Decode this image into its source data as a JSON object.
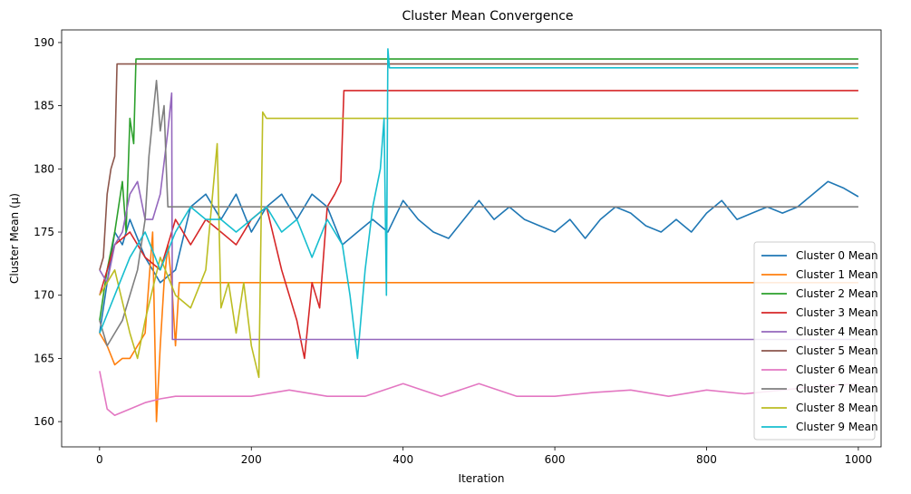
{
  "chart_data": {
    "type": "line",
    "title": "Cluster Mean Convergence",
    "xlabel": "Iteration",
    "ylabel": "Cluster Mean (μ)",
    "xlim": [
      -50,
      1030
    ],
    "ylim": [
      158,
      191
    ],
    "xticks": [
      0,
      200,
      400,
      600,
      800,
      1000
    ],
    "yticks": [
      160,
      165,
      170,
      175,
      180,
      185,
      190
    ],
    "grid": false,
    "legend_position": "lower-right",
    "series": [
      {
        "name": "Cluster 0 Mean",
        "color": "#1f77b4",
        "points": [
          [
            0,
            167
          ],
          [
            10,
            171
          ],
          [
            20,
            175
          ],
          [
            30,
            174
          ],
          [
            40,
            176
          ],
          [
            60,
            173
          ],
          [
            80,
            171
          ],
          [
            100,
            172
          ],
          [
            120,
            177
          ],
          [
            140,
            178
          ],
          [
            160,
            176
          ],
          [
            180,
            178
          ],
          [
            200,
            175
          ],
          [
            220,
            177
          ],
          [
            240,
            178
          ],
          [
            260,
            176
          ],
          [
            280,
            178
          ],
          [
            300,
            177
          ],
          [
            320,
            174
          ],
          [
            340,
            175
          ],
          [
            360,
            176
          ],
          [
            380,
            175
          ],
          [
            400,
            177.5
          ],
          [
            420,
            176
          ],
          [
            440,
            175
          ],
          [
            460,
            174.5
          ],
          [
            480,
            176
          ],
          [
            500,
            177.5
          ],
          [
            520,
            176
          ],
          [
            540,
            177
          ],
          [
            560,
            176
          ],
          [
            580,
            175.5
          ],
          [
            600,
            175
          ],
          [
            620,
            176
          ],
          [
            640,
            174.5
          ],
          [
            660,
            176
          ],
          [
            680,
            177
          ],
          [
            700,
            176.5
          ],
          [
            720,
            175.5
          ],
          [
            740,
            175
          ],
          [
            760,
            176
          ],
          [
            780,
            175
          ],
          [
            800,
            176.5
          ],
          [
            820,
            177.5
          ],
          [
            840,
            176
          ],
          [
            860,
            176.5
          ],
          [
            880,
            177
          ],
          [
            900,
            176.5
          ],
          [
            920,
            177
          ],
          [
            940,
            178
          ],
          [
            960,
            179
          ],
          [
            980,
            178.5
          ],
          [
            1000,
            177.8
          ]
        ]
      },
      {
        "name": "Cluster 1 Mean",
        "color": "#ff7f0e",
        "points": [
          [
            0,
            167
          ],
          [
            10,
            166
          ],
          [
            20,
            164.5
          ],
          [
            30,
            165
          ],
          [
            40,
            165
          ],
          [
            50,
            166
          ],
          [
            60,
            167
          ],
          [
            70,
            175
          ],
          [
            75,
            160
          ],
          [
            80,
            166
          ],
          [
            85,
            171
          ],
          [
            90,
            174
          ],
          [
            95,
            171
          ],
          [
            100,
            166
          ],
          [
            105,
            171
          ],
          [
            110,
            171
          ],
          [
            400,
            171
          ],
          [
            600,
            171
          ],
          [
            800,
            171
          ],
          [
            1000,
            171
          ]
        ]
      },
      {
        "name": "Cluster 2 Mean",
        "color": "#2ca02c",
        "points": [
          [
            0,
            168
          ],
          [
            10,
            172
          ],
          [
            20,
            175
          ],
          [
            30,
            179
          ],
          [
            35,
            175
          ],
          [
            40,
            184
          ],
          [
            45,
            182
          ],
          [
            48,
            188.7
          ],
          [
            100,
            188.7
          ],
          [
            400,
            188.7
          ],
          [
            700,
            188.7
          ],
          [
            1000,
            188.7
          ]
        ]
      },
      {
        "name": "Cluster 3 Mean",
        "color": "#d62728",
        "points": [
          [
            0,
            170
          ],
          [
            20,
            174
          ],
          [
            40,
            175
          ],
          [
            60,
            173
          ],
          [
            80,
            172
          ],
          [
            100,
            176
          ],
          [
            120,
            174
          ],
          [
            140,
            176
          ],
          [
            160,
            175
          ],
          [
            180,
            174
          ],
          [
            200,
            176
          ],
          [
            220,
            177
          ],
          [
            240,
            172
          ],
          [
            260,
            168
          ],
          [
            270,
            165
          ],
          [
            280,
            171
          ],
          [
            290,
            169
          ],
          [
            300,
            177
          ],
          [
            310,
            178
          ],
          [
            318,
            179
          ],
          [
            322,
            186.2
          ],
          [
            400,
            186.2
          ],
          [
            600,
            186.2
          ],
          [
            800,
            186.2
          ],
          [
            1000,
            186.2
          ]
        ]
      },
      {
        "name": "Cluster 4 Mean",
        "color": "#9467bd",
        "points": [
          [
            0,
            172
          ],
          [
            10,
            171
          ],
          [
            20,
            174
          ],
          [
            30,
            175
          ],
          [
            40,
            178
          ],
          [
            50,
            179
          ],
          [
            60,
            176
          ],
          [
            70,
            176
          ],
          [
            80,
            178
          ],
          [
            90,
            183
          ],
          [
            95,
            186
          ],
          [
            96,
            166.5
          ],
          [
            200,
            166.5
          ],
          [
            400,
            166.5
          ],
          [
            600,
            166.5
          ],
          [
            800,
            166.5
          ],
          [
            1000,
            166.5
          ]
        ]
      },
      {
        "name": "Cluster 5 Mean",
        "color": "#8c564b",
        "points": [
          [
            0,
            172
          ],
          [
            5,
            173
          ],
          [
            10,
            178
          ],
          [
            15,
            180
          ],
          [
            20,
            181
          ],
          [
            23,
            188.3
          ],
          [
            100,
            188.3
          ],
          [
            400,
            188.3
          ],
          [
            700,
            188.3
          ],
          [
            1000,
            188.3
          ]
        ]
      },
      {
        "name": "Cluster 6 Mean",
        "color": "#e377c2",
        "points": [
          [
            0,
            164
          ],
          [
            10,
            161
          ],
          [
            20,
            160.5
          ],
          [
            40,
            161
          ],
          [
            60,
            161.5
          ],
          [
            80,
            161.8
          ],
          [
            100,
            162
          ],
          [
            150,
            162
          ],
          [
            200,
            162
          ],
          [
            250,
            162.5
          ],
          [
            300,
            162
          ],
          [
            350,
            162
          ],
          [
            400,
            163
          ],
          [
            450,
            162
          ],
          [
            500,
            163
          ],
          [
            550,
            162
          ],
          [
            600,
            162
          ],
          [
            650,
            162.3
          ],
          [
            700,
            162.5
          ],
          [
            750,
            162
          ],
          [
            800,
            162.5
          ],
          [
            850,
            162.2
          ],
          [
            900,
            162.5
          ],
          [
            950,
            162.8
          ],
          [
            1000,
            163
          ]
        ]
      },
      {
        "name": "Cluster 7 Mean",
        "color": "#7f7f7f",
        "points": [
          [
            0,
            168
          ],
          [
            10,
            166
          ],
          [
            20,
            167
          ],
          [
            30,
            168
          ],
          [
            40,
            170
          ],
          [
            50,
            172
          ],
          [
            60,
            176
          ],
          [
            65,
            181
          ],
          [
            70,
            184
          ],
          [
            75,
            187
          ],
          [
            80,
            183
          ],
          [
            85,
            185
          ],
          [
            88,
            180
          ],
          [
            90,
            177
          ],
          [
            100,
            177
          ],
          [
            200,
            177
          ],
          [
            400,
            177
          ],
          [
            600,
            177
          ],
          [
            800,
            177
          ],
          [
            1000,
            177
          ]
        ]
      },
      {
        "name": "Cluster 8 Mean",
        "color": "#bcbd22",
        "points": [
          [
            0,
            170
          ],
          [
            20,
            172
          ],
          [
            40,
            167
          ],
          [
            50,
            165
          ],
          [
            60,
            168
          ],
          [
            80,
            173
          ],
          [
            100,
            170
          ],
          [
            120,
            169
          ],
          [
            140,
            172
          ],
          [
            155,
            182
          ],
          [
            160,
            169
          ],
          [
            170,
            171
          ],
          [
            180,
            167
          ],
          [
            190,
            171
          ],
          [
            200,
            166
          ],
          [
            210,
            163.5
          ],
          [
            215,
            184.5
          ],
          [
            220,
            184
          ],
          [
            400,
            184
          ],
          [
            600,
            184
          ],
          [
            800,
            184
          ],
          [
            1000,
            184
          ]
        ]
      },
      {
        "name": "Cluster 9 Mean",
        "color": "#17becf",
        "points": [
          [
            0,
            167
          ],
          [
            20,
            170
          ],
          [
            40,
            173
          ],
          [
            60,
            175
          ],
          [
            80,
            172
          ],
          [
            100,
            175
          ],
          [
            120,
            177
          ],
          [
            140,
            176
          ],
          [
            160,
            176
          ],
          [
            180,
            175
          ],
          [
            200,
            176
          ],
          [
            220,
            177
          ],
          [
            240,
            175
          ],
          [
            260,
            176
          ],
          [
            280,
            173
          ],
          [
            300,
            176
          ],
          [
            320,
            174
          ],
          [
            330,
            170
          ],
          [
            340,
            165
          ],
          [
            350,
            172
          ],
          [
            360,
            177
          ],
          [
            370,
            180
          ],
          [
            375,
            184
          ],
          [
            378,
            170
          ],
          [
            380,
            189.5
          ],
          [
            382,
            188
          ],
          [
            400,
            188
          ],
          [
            600,
            188
          ],
          [
            800,
            188
          ],
          [
            1000,
            188
          ]
        ]
      }
    ]
  }
}
